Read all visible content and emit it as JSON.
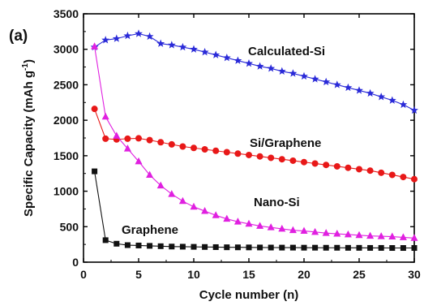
{
  "chart_data": {
    "type": "line",
    "panel_label": "(a)",
    "xlabel": "Cycle number (n)",
    "ylabel_main": "Specific Capacity (mAh g",
    "ylabel_sup": "-1",
    "ylabel_tail": ")",
    "xlim": [
      0,
      30
    ],
    "ylim": [
      0,
      3500
    ],
    "xticks": [
      0,
      5,
      10,
      15,
      20,
      25,
      30
    ],
    "yticks": [
      0,
      500,
      1000,
      1500,
      2000,
      2500,
      3000,
      3500
    ],
    "grid": false,
    "series": [
      {
        "name": "Calculated-Si",
        "color": "#2a2ad8",
        "marker": "star",
        "x": [
          1,
          2,
          3,
          4,
          5,
          6,
          7,
          8,
          9,
          10,
          11,
          12,
          13,
          14,
          15,
          16,
          17,
          18,
          19,
          20,
          21,
          22,
          23,
          24,
          25,
          26,
          27,
          28,
          29,
          30
        ],
        "values": [
          3030,
          3130,
          3150,
          3190,
          3220,
          3180,
          3080,
          3060,
          3030,
          3000,
          2960,
          2920,
          2880,
          2840,
          2800,
          2760,
          2730,
          2690,
          2660,
          2620,
          2580,
          2540,
          2500,
          2460,
          2420,
          2380,
          2330,
          2280,
          2220,
          2140
        ]
      },
      {
        "name": "Si/Graphene",
        "color": "#e81818",
        "marker": "circle",
        "x": [
          1,
          2,
          3,
          4,
          5,
          6,
          7,
          8,
          9,
          10,
          11,
          12,
          13,
          14,
          15,
          16,
          17,
          18,
          19,
          20,
          21,
          22,
          23,
          24,
          25,
          26,
          27,
          28,
          29,
          30
        ],
        "values": [
          2160,
          1740,
          1730,
          1740,
          1745,
          1720,
          1690,
          1660,
          1630,
          1610,
          1590,
          1570,
          1550,
          1530,
          1510,
          1490,
          1470,
          1450,
          1430,
          1410,
          1390,
          1370,
          1350,
          1330,
          1310,
          1290,
          1260,
          1230,
          1200,
          1170
        ]
      },
      {
        "name": "Nano-Si",
        "color": "#e020e0",
        "marker": "triangle",
        "x": [
          1,
          2,
          3,
          4,
          5,
          6,
          7,
          8,
          9,
          10,
          11,
          12,
          13,
          14,
          15,
          16,
          17,
          18,
          19,
          20,
          21,
          22,
          23,
          24,
          25,
          26,
          27,
          28,
          29,
          30
        ],
        "values": [
          3040,
          2050,
          1780,
          1600,
          1420,
          1230,
          1080,
          960,
          860,
          780,
          720,
          660,
          610,
          570,
          540,
          510,
          490,
          470,
          450,
          440,
          425,
          410,
          400,
          390,
          380,
          370,
          365,
          360,
          350,
          340
        ]
      },
      {
        "name": "Graphene",
        "color": "#111111",
        "marker": "square",
        "x": [
          1,
          2,
          3,
          4,
          5,
          6,
          7,
          8,
          9,
          10,
          11,
          12,
          13,
          14,
          15,
          16,
          17,
          18,
          19,
          20,
          21,
          22,
          23,
          24,
          25,
          26,
          27,
          28,
          29,
          30
        ],
        "values": [
          1280,
          310,
          260,
          240,
          235,
          230,
          225,
          220,
          218,
          216,
          214,
          212,
          210,
          209,
          208,
          207,
          206,
          205,
          205,
          204,
          204,
          203,
          203,
          202,
          202,
          201,
          201,
          200,
          200,
          200
        ]
      }
    ],
    "annotations": [
      "Calculated-Si",
      "Si/Graphene",
      "Nano-Si",
      "Graphene"
    ]
  }
}
